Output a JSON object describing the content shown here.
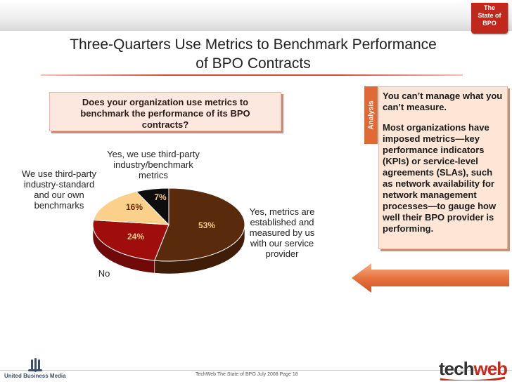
{
  "badge": {
    "line1": "The",
    "line2": "State of",
    "line3": "BPO"
  },
  "title": {
    "line1": "Three-Quarters Use Metrics to Benchmark Performance",
    "line2": "of BPO Contracts"
  },
  "question": "Does your organization use metrics to benchmark the performance of its BPO contracts?",
  "chart_data": {
    "type": "pie",
    "title": "",
    "categories": [
      "Yes, metrics are established and measured by us with our service provider",
      "No",
      "We use third-party industry-standard and our own benchmarks",
      "Yes, we use third-party industry/benchmark metrics"
    ],
    "values": [
      53,
      24,
      16,
      7
    ],
    "value_labels": [
      "53%",
      "24%",
      "16%",
      "7%"
    ],
    "label_lines": [
      [
        "Yes, metrics are",
        "established and",
        "measured by us",
        "with our service",
        "provider"
      ],
      [
        "No"
      ],
      [
        "We use third-party",
        "industry-standard",
        "and our own",
        "benchmarks"
      ],
      [
        "Yes, we use third-party",
        "industry/benchmark",
        "metrics"
      ]
    ],
    "colors": [
      "#5a2a0c",
      "#a00d0d",
      "#fbd08a",
      "#0d0d0d"
    ],
    "pct_colors": [
      "#f4c98a",
      "#f4c98a",
      "#6a2b0b",
      "#f4c98a"
    ]
  },
  "analysis": {
    "tab_label": "Analysis",
    "heading": "You can’t manage what you can’t measure.",
    "body": "Most organizations have imposed metrics—key performance indicators (KPIs) or service-level agreements (SLAs), such as network availability for network management processes—to gauge how well their BPO provider is performing."
  },
  "footer": {
    "left_brand": "United Business Media",
    "center": "TechWeb The State of BPO    July 2008    Page 18",
    "right_brand_a": "tech",
    "right_brand_b": "web"
  }
}
